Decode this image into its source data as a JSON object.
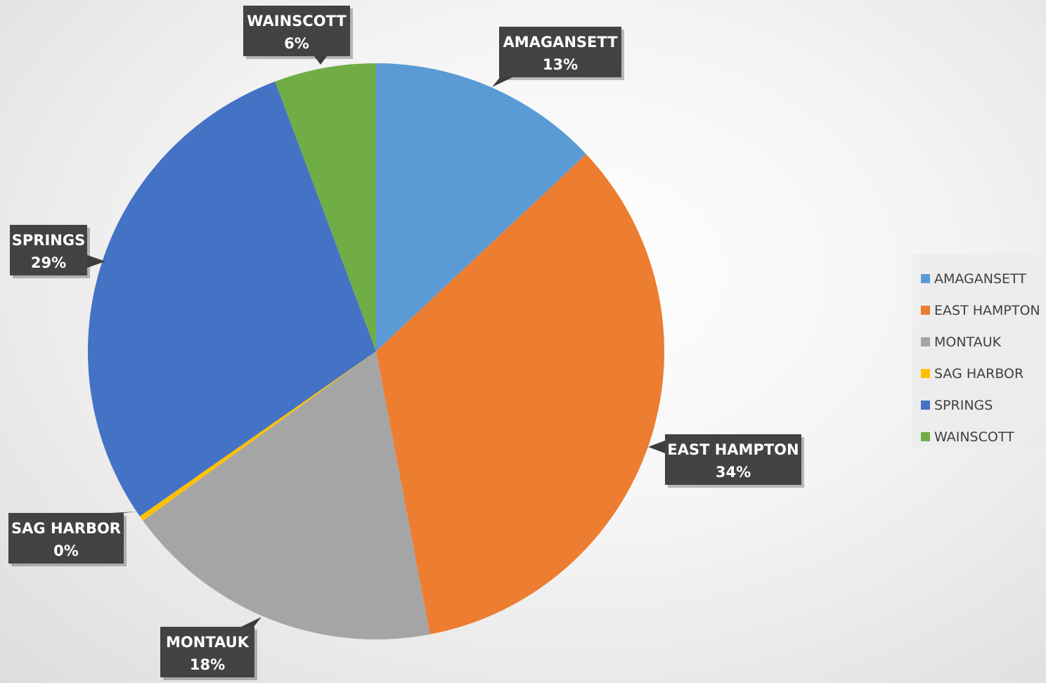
{
  "chart_data": {
    "type": "pie",
    "title": "",
    "legend_position": "right",
    "categories": [
      "AMAGANSETT",
      "EAST HAMPTON",
      "MONTAUK",
      "SAG HARBOR",
      "SPRINGS",
      "WAINSCOTT"
    ],
    "values": [
      13,
      34,
      18,
      0.3,
      29,
      5.7
    ],
    "data_labels": [
      "13%",
      "34%",
      "18%",
      "0%",
      "29%",
      "6%"
    ],
    "colors": [
      "#5B9BD5",
      "#ED7D31",
      "#A5A5A5",
      "#FFC000",
      "#4472C4",
      "#70AD47"
    ],
    "start_angle_deg": 0,
    "direction": "clockwise"
  }
}
